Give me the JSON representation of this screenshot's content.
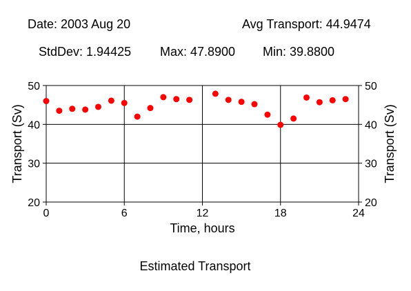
{
  "header": {
    "date": "Date: 2003 Aug 20",
    "avg": "Avg Transport: 44.9474",
    "stddev": "StdDev: 1.94425",
    "max": "Max: 47.8900",
    "min": "Min: 39.8800"
  },
  "footer": {
    "caption": "Estimated Transport"
  },
  "chart_data": {
    "type": "scatter",
    "xlabel": "Time, hours",
    "ylabel": "Transport (Sv)",
    "xlim": [
      0,
      24
    ],
    "ylim": [
      20,
      50
    ],
    "xticks": [
      0,
      6,
      12,
      18,
      24
    ],
    "yticks": [
      20,
      30,
      40,
      50
    ],
    "xtick_labels": [
      "0",
      "6",
      "12",
      "18",
      "24"
    ],
    "ytick_labels": [
      "20",
      "30",
      "40",
      "50"
    ],
    "grid": true,
    "marker_color": "#ff0000",
    "points": [
      {
        "x": 0,
        "y": 46.0
      },
      {
        "x": 1,
        "y": 43.5
      },
      {
        "x": 2,
        "y": 44.0
      },
      {
        "x": 3,
        "y": 43.8
      },
      {
        "x": 4,
        "y": 44.5
      },
      {
        "x": 5,
        "y": 46.1
      },
      {
        "x": 6,
        "y": 45.5
      },
      {
        "x": 7,
        "y": 42.0
      },
      {
        "x": 8,
        "y": 44.2
      },
      {
        "x": 9,
        "y": 47.0
      },
      {
        "x": 10,
        "y": 46.5
      },
      {
        "x": 11,
        "y": 46.3
      },
      {
        "x": 13,
        "y": 47.89
      },
      {
        "x": 14,
        "y": 46.3
      },
      {
        "x": 15,
        "y": 45.8
      },
      {
        "x": 16,
        "y": 45.2
      },
      {
        "x": 17,
        "y": 42.5
      },
      {
        "x": 18,
        "y": 39.88
      },
      {
        "x": 19,
        "y": 41.5
      },
      {
        "x": 20,
        "y": 46.9
      },
      {
        "x": 21,
        "y": 45.7
      },
      {
        "x": 22,
        "y": 46.2
      },
      {
        "x": 23,
        "y": 46.5
      }
    ]
  }
}
